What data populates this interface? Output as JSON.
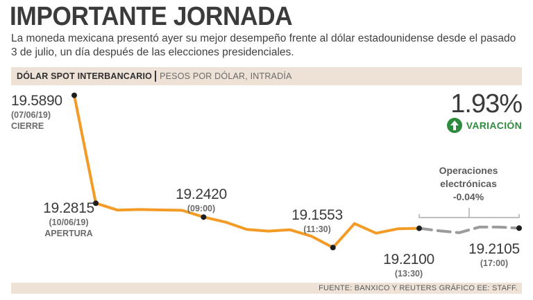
{
  "title": "IMPORTANTE JORNADA",
  "subtitle": "La moneda mexicana presentó ayer su mejor desempeño frente al dólar estadounidense desde el pasado 3 de julio, un día después de las elecciones presidenciales.",
  "header": {
    "main": "DÓLAR SPOT INTERBANCARIO",
    "sub": "PESOS POR DÓLAR, INTRADÍA"
  },
  "variation": {
    "value": "1.93%",
    "label": "VARIACIÓN",
    "icon": "up-arrow-icon",
    "color": "#2e8b3e"
  },
  "electronic_note": {
    "line1": "Operaciones",
    "line2": "electrónicas",
    "line3": "-0.04%"
  },
  "source": "FUENTE: BANXICO Y REUTERS GRÁFICO EE: STAFF.",
  "chart_data": {
    "type": "line",
    "ylim": [
      19.14,
      19.6
    ],
    "colors": {
      "main": "#f29b26",
      "electronic": "#9b9b9b"
    },
    "series": [
      {
        "values": [
          19.589,
          19.2815,
          19.262,
          19.2635,
          19.2625,
          19.2615,
          19.242,
          19.228,
          19.207,
          19.202,
          19.206,
          19.1875,
          19.1553,
          19.2235,
          19.196,
          19.2085,
          19.21
        ]
      },
      {
        "values": [
          19.21,
          19.203,
          19.1975,
          19.2135,
          19.2135,
          19.2105
        ]
      }
    ],
    "annotations": [
      {
        "value": "19.5890",
        "date": "(07/06/19)",
        "note": "CIERRE"
      },
      {
        "value": "19.2815",
        "date": "(10/06/19)",
        "note": "APERTURA"
      },
      {
        "value": "19.2420",
        "date": "(09:00)"
      },
      {
        "value": "19.1553",
        "date": "(11:30)"
      },
      {
        "value": "19.2100",
        "date": "(13:30)"
      },
      {
        "value": "19.2105",
        "date": "(17:00)"
      }
    ]
  }
}
